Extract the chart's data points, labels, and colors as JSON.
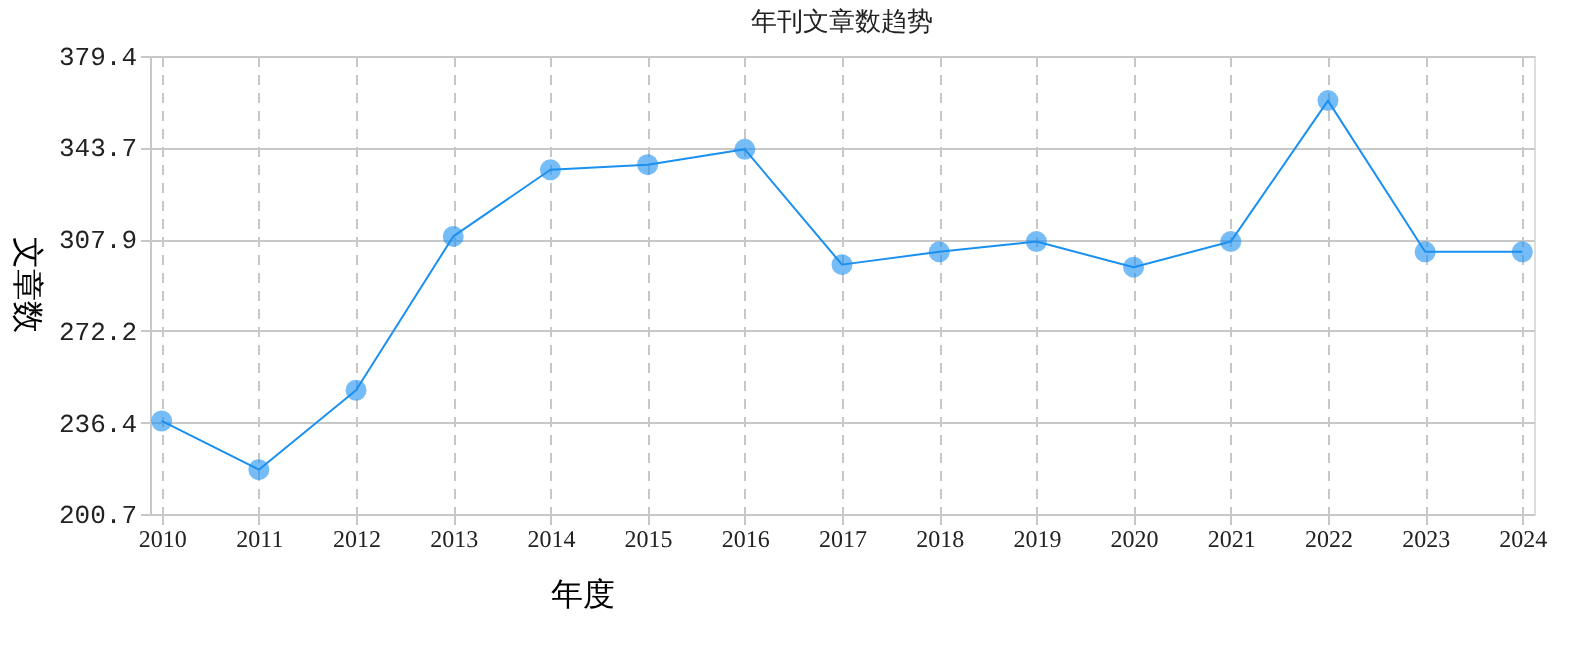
{
  "chart_data": {
    "type": "line",
    "title": "年刊文章数趋势",
    "xlabel": "年度",
    "ylabel": "文章数",
    "categories": [
      "2010",
      "2011",
      "2012",
      "2013",
      "2014",
      "2015",
      "2016",
      "2017",
      "2018",
      "2019",
      "2020",
      "2021",
      "2022",
      "2023",
      "2024"
    ],
    "series": [
      {
        "color": "#1a90f0",
        "values": [
          237,
          218,
          249,
          309,
          335,
          337,
          343,
          298,
          303,
          307,
          297,
          307,
          362,
          303,
          303
        ]
      }
    ],
    "ylim": [
      200.7,
      379.4
    ],
    "yticks": [
      200.7,
      236.4,
      272.2,
      307.9,
      343.7,
      379.4
    ],
    "grid": true,
    "marker": "circle",
    "line_style": "solid"
  }
}
